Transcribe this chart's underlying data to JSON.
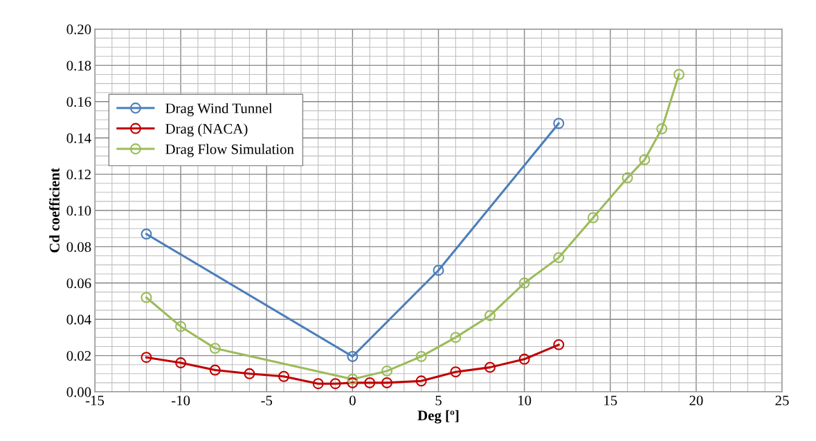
{
  "chart_data": {
    "type": "line",
    "xlabel": "Deg [º]",
    "ylabel": "Cd coefficient",
    "xlim": [
      -15,
      25
    ],
    "xticks": [
      -15,
      -10,
      -5,
      0,
      5,
      10,
      15,
      20,
      25
    ],
    "ylim": [
      0,
      0.2
    ],
    "yticks": [
      {
        "value": 0,
        "label": "0.00"
      },
      {
        "value": 0.02,
        "label": "0.02"
      },
      {
        "value": 0.04,
        "label": "0.04"
      },
      {
        "value": 0.06,
        "label": "0.06"
      },
      {
        "value": 0.08,
        "label": "0.08"
      },
      {
        "value": 0.1,
        "label": "0.10"
      },
      {
        "value": 0.12,
        "label": "0.12"
      },
      {
        "value": 0.14,
        "label": "0.14"
      },
      {
        "value": 0.16,
        "label": "0.16"
      },
      {
        "value": 0.18,
        "label": "0.18"
      },
      {
        "value": 0.2,
        "label": "0.20"
      }
    ],
    "grid": true,
    "legend": "top left",
    "marker": "circle",
    "line_style": "solid",
    "series": [
      {
        "name": "Drag Wind Tunnel",
        "color": "#4a7ebb",
        "x": [
          -12,
          0,
          5,
          12
        ],
        "values": [
          0.087,
          0.0195,
          0.067,
          0.148
        ]
      },
      {
        "name": "Drag (NACA)",
        "color": "#c00000",
        "x": [
          -12,
          -10,
          -8,
          -6,
          -4,
          -2,
          -1,
          0,
          1,
          2,
          4,
          6,
          8,
          10,
          12
        ],
        "values": [
          0.019,
          0.016,
          0.012,
          0.01,
          0.0085,
          0.0045,
          0.0045,
          0.005,
          0.005,
          0.005,
          0.006,
          0.011,
          0.0135,
          0.018,
          0.026
        ]
      },
      {
        "name": "Drag Flow Simulation",
        "color": "#9bbb59",
        "x": [
          -12,
          -10,
          -8,
          0,
          2,
          4,
          6,
          8,
          10,
          12,
          14,
          16,
          17,
          18,
          19
        ],
        "values": [
          0.052,
          0.036,
          0.024,
          0.007,
          0.0115,
          0.0195,
          0.03,
          0.042,
          0.06,
          0.074,
          0.096,
          0.118,
          0.128,
          0.145,
          0.175
        ]
      }
    ]
  }
}
